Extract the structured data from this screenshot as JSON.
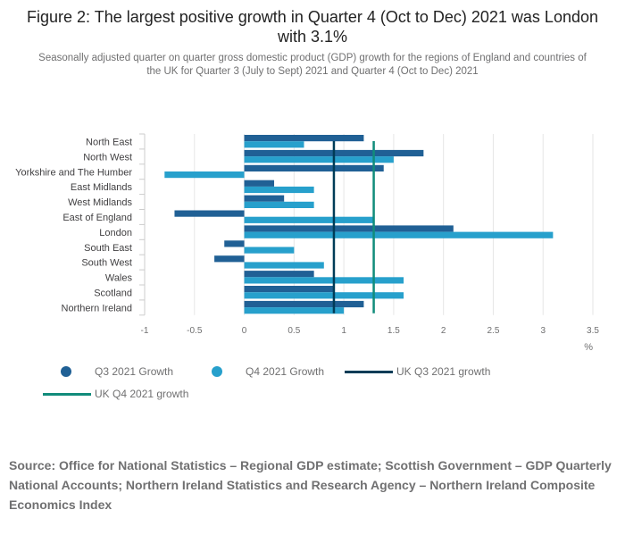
{
  "figure": {
    "title": "Figure 2: The largest positive growth in Quarter 4 (Oct to Dec) 2021 was London with 3.1%",
    "subtitle": "Seasonally adjusted quarter on quarter gross domestic product (GDP) growth for the regions of England and countries of the UK for Quarter 3 (July to Sept) 2021 and Quarter 4 (Oct to Dec) 2021",
    "source": "Source: Office for National Statistics – Regional GDP estimate; Scottish Government – GDP Quarterly National Accounts; Northern Ireland Statistics and Research Agency – Northern Ireland Composite Economics Index"
  },
  "legend": {
    "q3": "Q3 2021 Growth",
    "q4": "Q4 2021 Growth",
    "uk_q3": "UK Q3 2021 growth",
    "uk_q4": "UK Q4 2021 growth"
  },
  "colors": {
    "q3": "#206095",
    "q4": "#27a0cc",
    "uk_q3": "#003c57",
    "uk_q4": "#118c7b"
  },
  "chart_data": {
    "type": "bar",
    "orientation": "horizontal",
    "categories": [
      "North East",
      "North West",
      "Yorkshire and The Humber",
      "East Midlands",
      "West Midlands",
      "East of England",
      "London",
      "South East",
      "South West",
      "Wales",
      "Scotland",
      "Northern Ireland"
    ],
    "series": [
      {
        "name": "Q3 2021 Growth",
        "values": [
          1.2,
          1.8,
          1.4,
          0.3,
          0.4,
          -0.7,
          2.1,
          -0.2,
          -0.3,
          0.7,
          0.9,
          1.2
        ]
      },
      {
        "name": "Q4 2021 Growth",
        "values": [
          0.6,
          1.5,
          -0.8,
          0.7,
          0.7,
          1.3,
          3.1,
          0.5,
          0.8,
          1.6,
          1.6,
          1.0
        ]
      }
    ],
    "reference_lines": [
      {
        "name": "UK Q3 2021 growth",
        "value": 0.9
      },
      {
        "name": "UK Q4 2021 growth",
        "value": 1.3
      }
    ],
    "x_ticks": [
      "-1",
      "-0.5",
      "0",
      "0.5",
      "1",
      "1.5",
      "2",
      "2.5",
      "3",
      "3.5"
    ],
    "xlim": [
      -1,
      3.5
    ],
    "xlabel": "%",
    "grid": true,
    "legend_position": "bottom"
  }
}
